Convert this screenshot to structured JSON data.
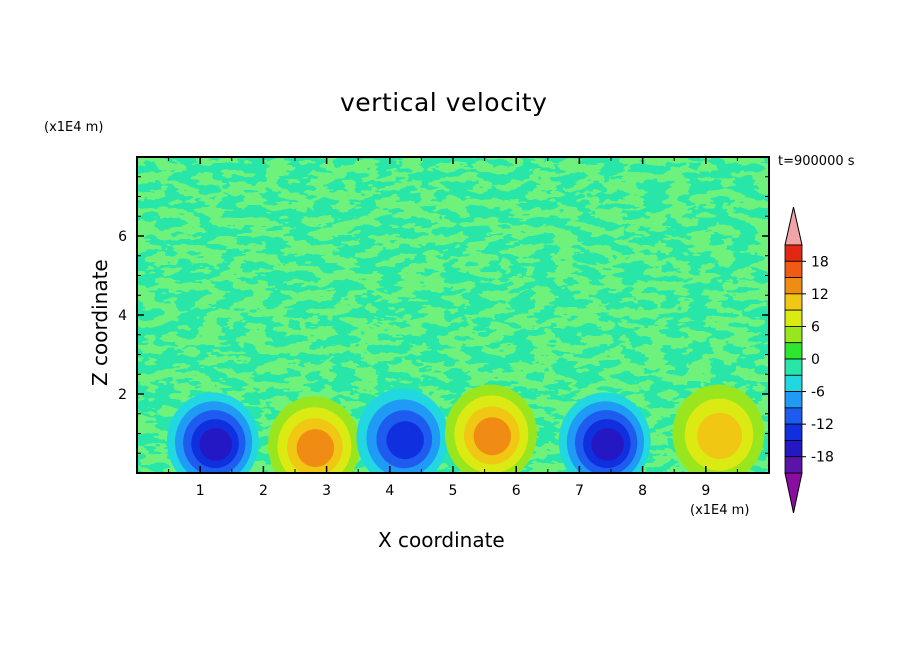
{
  "chart_data": {
    "type": "heatmap",
    "title": "vertical velocity",
    "xlabel": "X coordinate",
    "ylabel": "Z coordinate",
    "x_unit": "(x1E4 m)",
    "y_unit": "(x1E4 m)",
    "time_label": "t=900000 s",
    "xlim": [
      0,
      10
    ],
    "ylim": [
      0,
      8
    ],
    "x_ticks": [
      "1",
      "2",
      "3",
      "4",
      "5",
      "6",
      "7",
      "8",
      "9"
    ],
    "y_ticks": [
      "2",
      "4",
      "6"
    ],
    "colorbar": {
      "levels": [
        -21,
        -18,
        -15,
        -12,
        -9,
        -6,
        -3,
        0,
        3,
        6,
        9,
        12,
        15,
        18,
        21
      ],
      "tick_labels": [
        "18",
        "12",
        "6",
        "0",
        "-6",
        "-12",
        "-18"
      ],
      "colors": [
        "#8a0ca0",
        "#5a14a8",
        "#2418c4",
        "#1030e0",
        "#1e5cf0",
        "#1f9af5",
        "#22d8e0",
        "#28e6a8",
        "#2ee62e",
        "#9ae61e",
        "#dcea14",
        "#f0c814",
        "#f08c14",
        "#f05a14",
        "#e02814",
        "#f0a4a8"
      ]
    },
    "cells": [
      {
        "x": 1.2,
        "z": 0.8,
        "w": -15
      },
      {
        "x": 2.8,
        "z": 0.7,
        "w": 12
      },
      {
        "x": 4.2,
        "z": 0.9,
        "w": -12
      },
      {
        "x": 5.6,
        "z": 1.0,
        "w": 13
      },
      {
        "x": 7.4,
        "z": 0.8,
        "w": -16
      },
      {
        "x": 9.2,
        "z": 1.0,
        "w": 9
      }
    ]
  }
}
